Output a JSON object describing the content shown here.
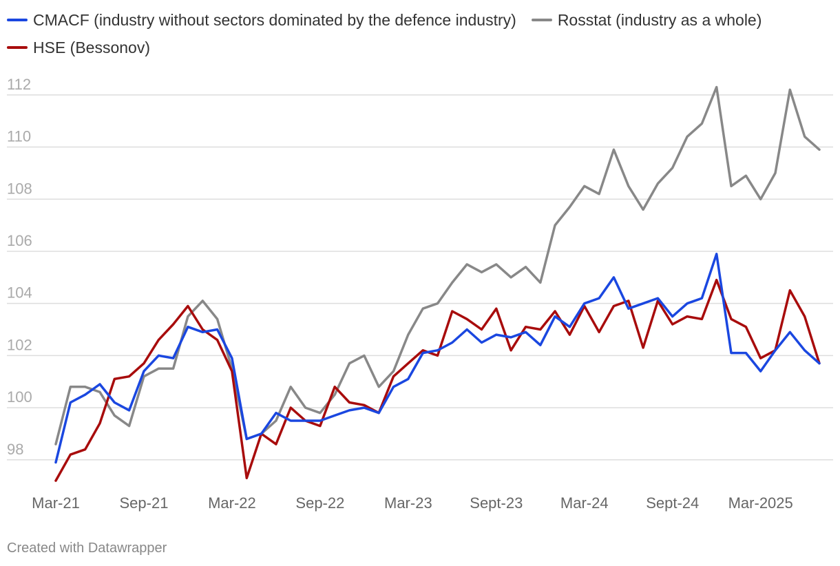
{
  "chart_data": {
    "type": "line",
    "title": "",
    "xlabel": "",
    "ylabel": "",
    "ylim": [
      96.7,
      113
    ],
    "yticks": [
      98,
      100,
      102,
      104,
      106,
      108,
      110,
      112
    ],
    "xticks": [
      {
        "label": "Mar-21",
        "index": 0
      },
      {
        "label": "Sep-21",
        "index": 6
      },
      {
        "label": "Mar-22",
        "index": 12
      },
      {
        "label": "Sep-22",
        "index": 18
      },
      {
        "label": "Mar-23",
        "index": 24
      },
      {
        "label": "Sept-23",
        "index": 30
      },
      {
        "label": "Mar-24",
        "index": 36
      },
      {
        "label": "Sept-24",
        "index": 42
      },
      {
        "label": "Mar-2025",
        "index": 48
      }
    ],
    "series": [
      {
        "name": "CMACF (industry without sectors dominated by the defence industry)",
        "color": "#1a47e0",
        "values": [
          97.9,
          100.2,
          100.5,
          100.9,
          100.2,
          99.9,
          101.4,
          102.0,
          101.9,
          103.1,
          102.9,
          103.0,
          101.9,
          98.8,
          99.0,
          99.8,
          99.5,
          99.5,
          99.5,
          99.7,
          99.9,
          100.0,
          99.8,
          100.8,
          101.1,
          102.1,
          102.2,
          102.5,
          103.0,
          102.5,
          102.8,
          102.7,
          102.9,
          102.4,
          103.5,
          103.1,
          104.0,
          104.2,
          105.0,
          103.8,
          104.0,
          104.2,
          103.5,
          104.0,
          104.2,
          105.9,
          102.1,
          102.1,
          101.4,
          102.2,
          102.9,
          102.2,
          101.7
        ]
      },
      {
        "name": "Rosstat (industry as a whole)",
        "color": "#888888",
        "values": [
          98.6,
          100.8,
          100.8,
          100.6,
          99.7,
          99.3,
          101.2,
          101.5,
          101.5,
          103.5,
          104.1,
          103.4,
          101.5,
          98.8,
          99.0,
          99.5,
          100.8,
          100.0,
          99.8,
          100.5,
          101.7,
          102.0,
          100.8,
          101.4,
          102.8,
          103.8,
          104.0,
          104.8,
          105.5,
          105.2,
          105.5,
          105.0,
          105.4,
          104.8,
          107.0,
          107.7,
          108.5,
          108.2,
          109.9,
          108.5,
          107.6,
          108.6,
          109.2,
          110.4,
          110.9,
          112.3,
          108.5,
          108.9,
          108.0,
          109.0,
          112.2,
          110.4,
          109.9
        ]
      },
      {
        "name": "HSE (Bessonov)",
        "color": "#a80c0c",
        "values": [
          97.2,
          98.2,
          98.4,
          99.4,
          101.1,
          101.2,
          101.7,
          102.6,
          103.2,
          103.9,
          103.0,
          102.6,
          101.4,
          97.3,
          99.0,
          98.6,
          100.0,
          99.5,
          99.3,
          100.8,
          100.2,
          100.1,
          99.8,
          101.2,
          101.7,
          102.2,
          102.0,
          103.7,
          103.4,
          103.0,
          103.8,
          102.2,
          103.1,
          103.0,
          103.7,
          102.8,
          103.9,
          102.9,
          103.9,
          104.1,
          102.3,
          104.1,
          103.2,
          103.5,
          103.4,
          104.9,
          103.4,
          103.1,
          101.9,
          102.2,
          104.5,
          103.5,
          101.7
        ]
      }
    ],
    "legend_position": "top-left"
  },
  "footer": "Created with Datawrapper"
}
